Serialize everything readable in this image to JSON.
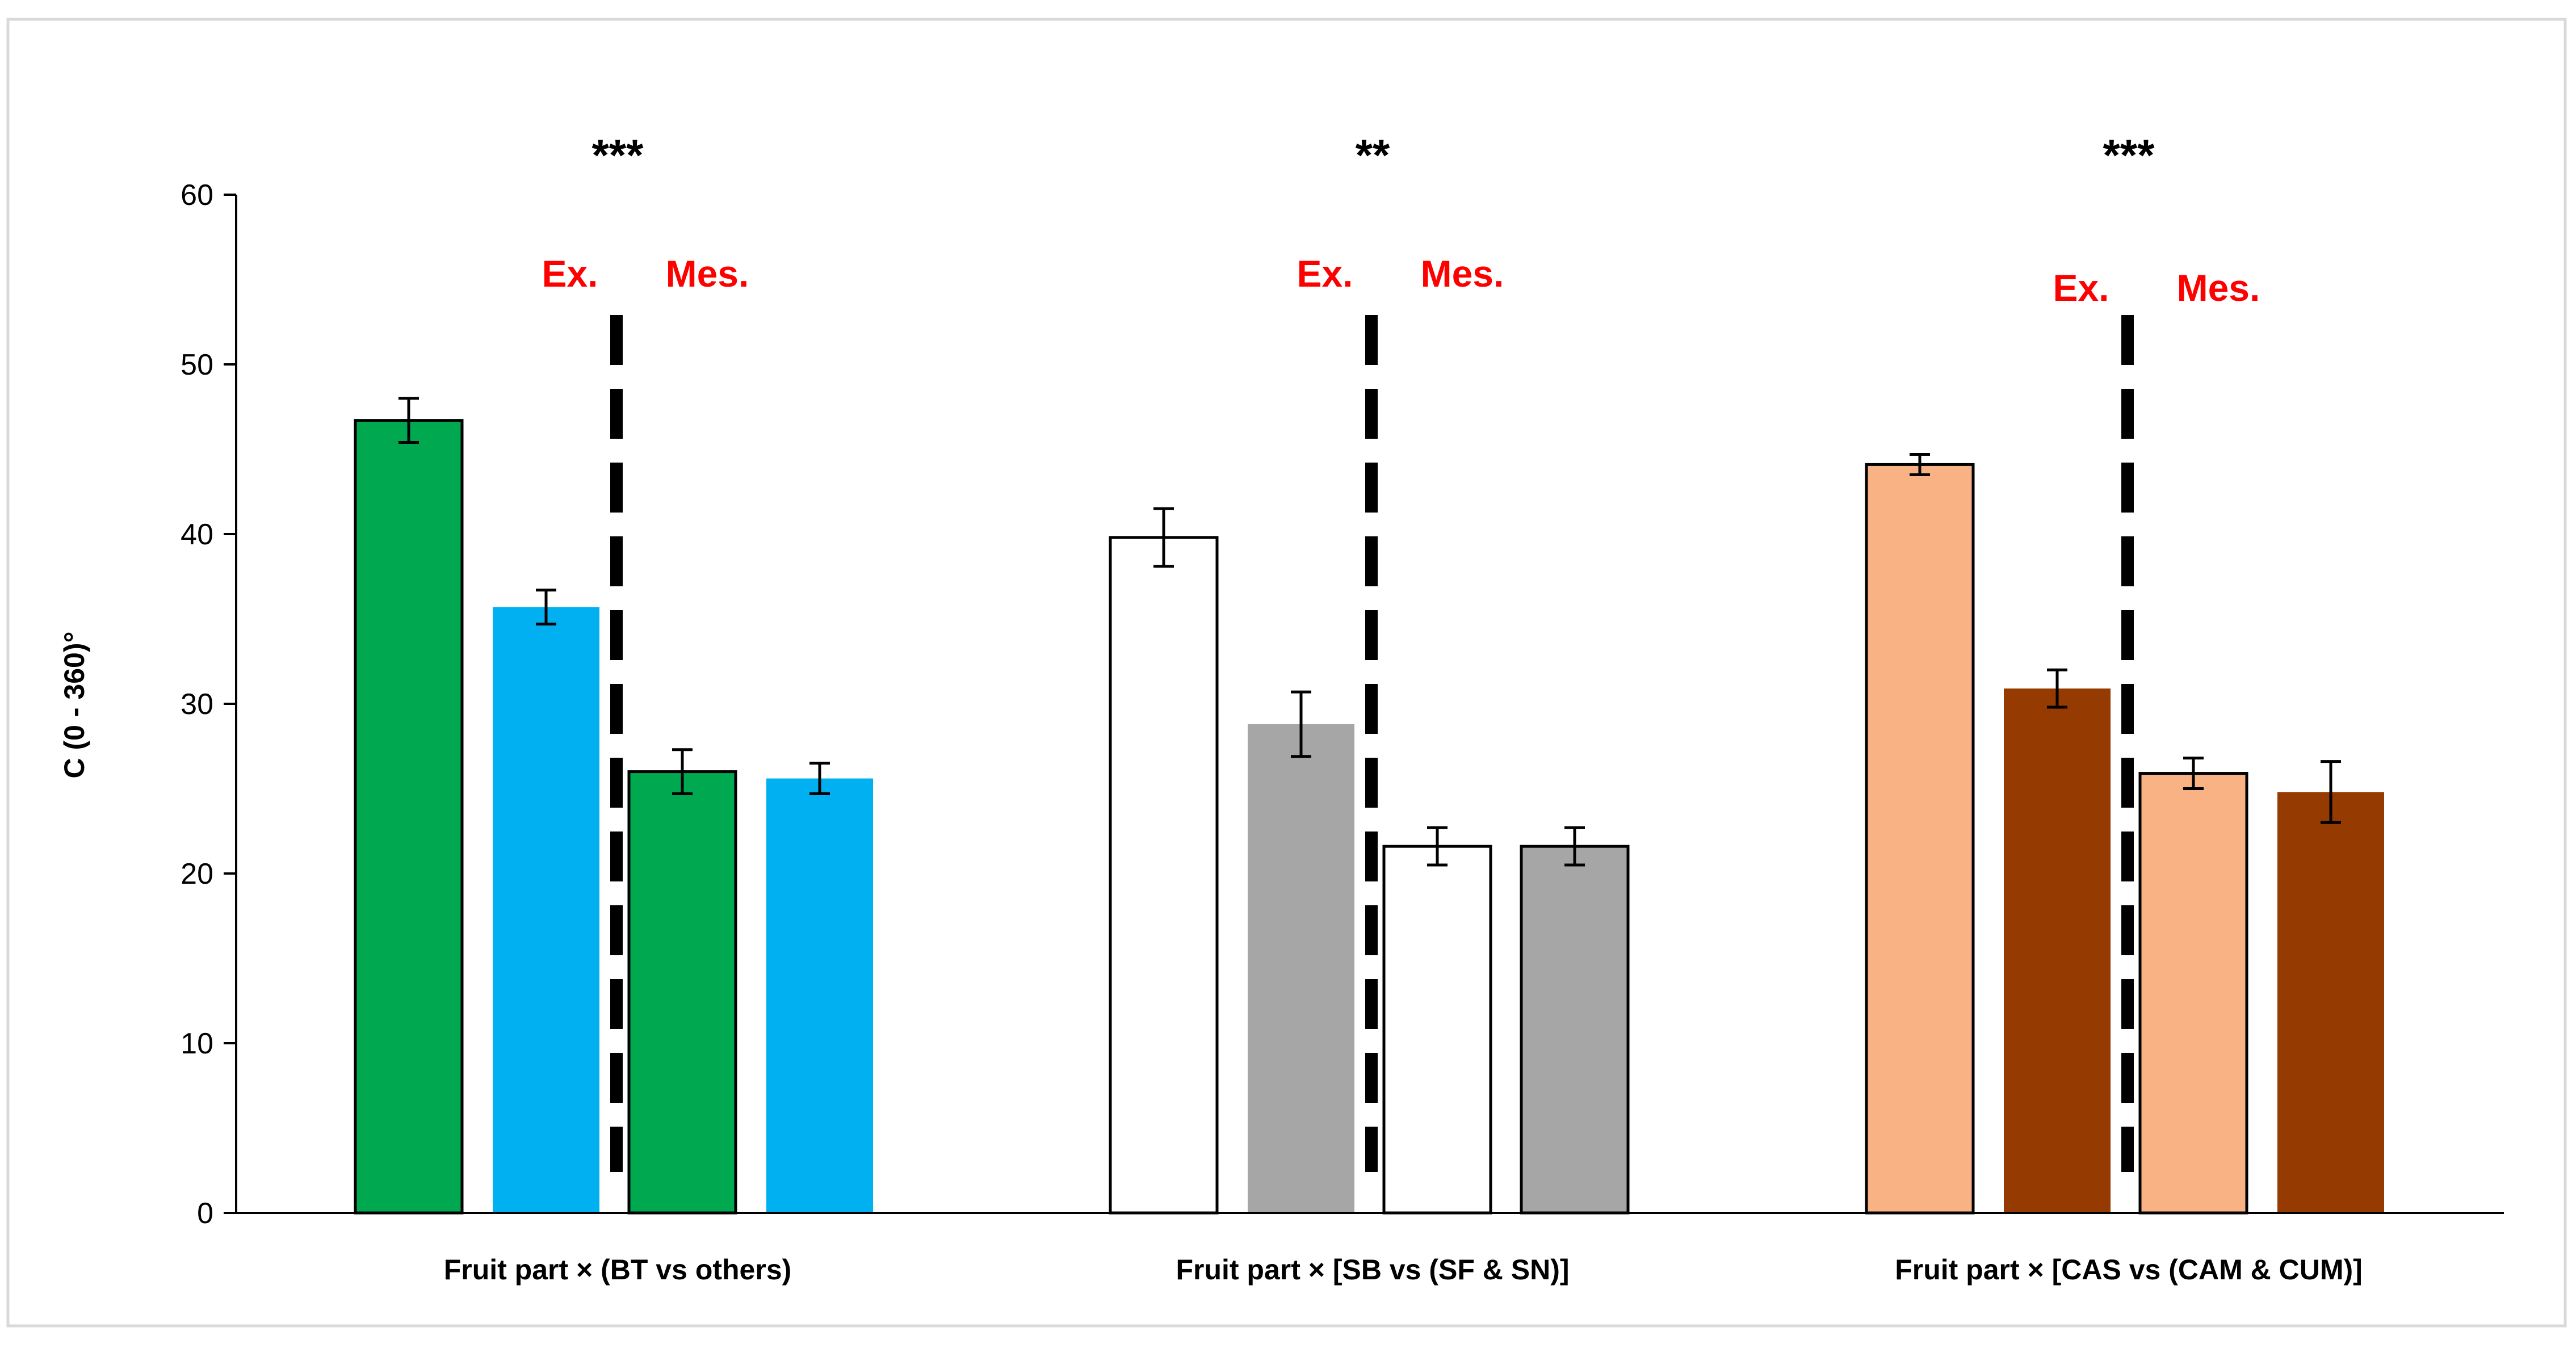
{
  "colors": {
    "green": "#00a94f",
    "blue": "#00b0f0",
    "white": "#ffffff",
    "gray": "#a6a6a6",
    "peach": "#f9b283",
    "brown": "#953a00",
    "annotation_red": "#ff0000",
    "frame": "#d9d9d9",
    "axis": "#000000"
  },
  "chart_data": {
    "type": "bar",
    "ylabel": "C (0 - 360)°",
    "xlabel": "",
    "ylim": [
      0,
      60
    ],
    "yticks": [
      0,
      10,
      20,
      30,
      40,
      50,
      60
    ],
    "grid": false,
    "groups": [
      {
        "label": "Fruit part × (BT vs others)",
        "significance": "***",
        "region_labels": [
          "Ex.",
          "Mes."
        ],
        "bars": [
          {
            "region": "Ex.",
            "value": 46.7,
            "error": 1.3,
            "color": "green",
            "outlined": true
          },
          {
            "region": "Ex.",
            "value": 35.7,
            "error": 1.0,
            "color": "blue",
            "outlined": false
          },
          {
            "region": "Mes.",
            "value": 26.0,
            "error": 1.3,
            "color": "green",
            "outlined": true
          },
          {
            "region": "Mes.",
            "value": 25.6,
            "error": 0.9,
            "color": "blue",
            "outlined": false
          }
        ]
      },
      {
        "label": "Fruit part × [SB vs (SF & SN)]",
        "significance": "**",
        "region_labels": [
          "Ex.",
          "Mes."
        ],
        "bars": [
          {
            "region": "Ex.",
            "value": 39.8,
            "error": 1.7,
            "color": "white",
            "outlined": true
          },
          {
            "region": "Ex.",
            "value": 28.8,
            "error": 1.9,
            "color": "gray",
            "outlined": false
          },
          {
            "region": "Mes.",
            "value": 21.6,
            "error": 1.1,
            "color": "white",
            "outlined": true
          },
          {
            "region": "Mes.",
            "value": 21.6,
            "error": 1.1,
            "color": "gray",
            "outlined": true
          }
        ]
      },
      {
        "label": "Fruit part × [CAS vs (CAM & CUM)]",
        "significance": "***",
        "region_labels": [
          "Ex.",
          "Mes."
        ],
        "bars": [
          {
            "region": "Ex.",
            "value": 44.1,
            "error": 0.6,
            "color": "peach",
            "outlined": true
          },
          {
            "region": "Ex.",
            "value": 30.9,
            "error": 1.1,
            "color": "brown",
            "outlined": false
          },
          {
            "region": "Mes.",
            "value": 25.9,
            "error": 0.9,
            "color": "peach",
            "outlined": true
          },
          {
            "region": "Mes.",
            "value": 24.8,
            "error": 1.8,
            "color": "brown",
            "outlined": false
          }
        ]
      }
    ]
  }
}
